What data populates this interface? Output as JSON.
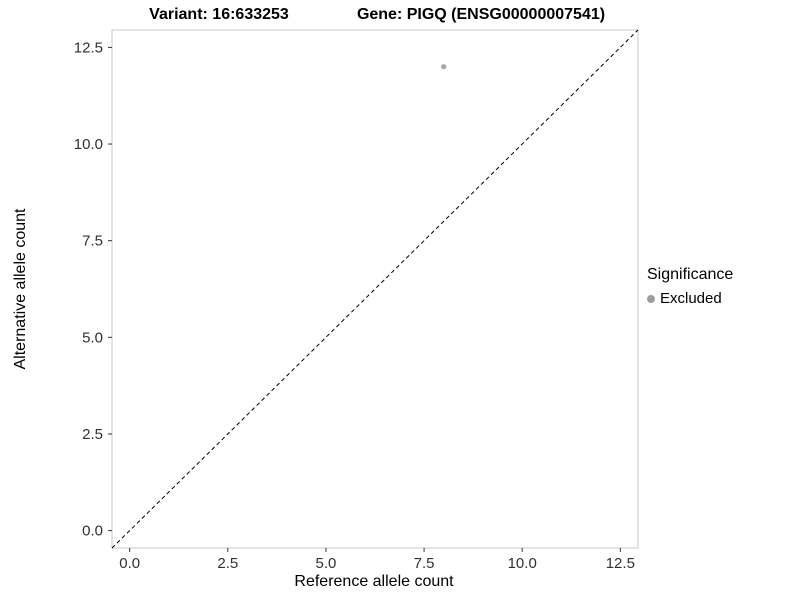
{
  "page": {
    "background": "#ffffff"
  },
  "chart_data": {
    "type": "scatter",
    "titles": {
      "left": "Variant: 16:633253",
      "right": "Gene: PIGQ (ENSG00000007541)"
    },
    "xlabel": "Reference allele count",
    "ylabel": "Alternative allele count",
    "xlim": [
      -0.45,
      12.95
    ],
    "ylim": [
      -0.45,
      12.95
    ],
    "x_ticks": {
      "values": [
        0,
        2.5,
        5,
        7.5,
        10,
        12.5
      ],
      "labels": [
        "0.0",
        "2.5",
        "5.0",
        "7.5",
        "10.0",
        "12.5"
      ]
    },
    "y_ticks": {
      "values": [
        0,
        2.5,
        5,
        7.5,
        10,
        12.5
      ],
      "labels": [
        "0.0",
        "2.5",
        "5.0",
        "7.5",
        "10.0",
        "12.5"
      ]
    },
    "grid": false,
    "panel_border_color": "#c9c9c9",
    "tick_color": "#333333",
    "reference_line": {
      "type": "identity",
      "style": "dashed",
      "color": "#000000",
      "slope": 1,
      "intercept": 0
    },
    "series": [
      {
        "name": "Excluded",
        "color": "#a6a6a6",
        "points": [
          {
            "x": 8,
            "y": 12
          }
        ]
      }
    ],
    "legend": {
      "title": "Significance",
      "position": "right",
      "entries": [
        {
          "label": "Excluded",
          "color": "#9e9e9e"
        }
      ]
    }
  }
}
